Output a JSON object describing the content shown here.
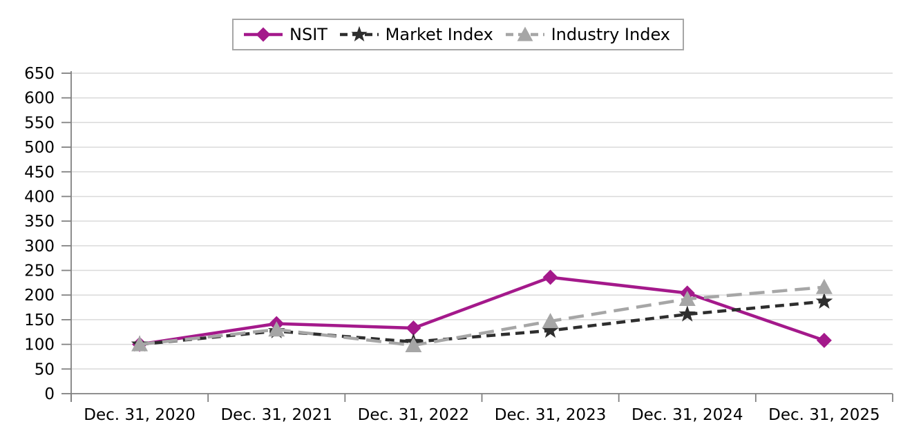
{
  "chart_data": {
    "type": "line",
    "title": "",
    "xlabel": "",
    "ylabel": "",
    "categories": [
      "Dec. 31, 2020",
      "Dec. 31, 2021",
      "Dec. 31, 2022",
      "Dec. 31, 2023",
      "Dec. 31, 2024",
      "Dec. 31, 2025"
    ],
    "series": [
      {
        "name": "NSIT",
        "color": "#a4198b",
        "dash": "solid",
        "marker": "diamond",
        "values": [
          100,
          142,
          133,
          236,
          204,
          108
        ]
      },
      {
        "name": "Market Index",
        "color": "#2e2e2e",
        "dash": "dashed",
        "marker": "star",
        "values": [
          100,
          127,
          105,
          128,
          161,
          187
        ]
      },
      {
        "name": "Industry Index",
        "color": "#a6a6a6",
        "dash": "long-dash",
        "marker": "triangle",
        "values": [
          100,
          130,
          98,
          147,
          192,
          216
        ]
      }
    ],
    "ylim": [
      0,
      650
    ],
    "y_ticks": [
      0,
      50,
      100,
      150,
      200,
      250,
      300,
      350,
      400,
      450,
      500,
      550,
      600,
      650
    ],
    "grid": true,
    "legend_position": "top",
    "axis_color": "#808080",
    "grid_color": "#d9d9d9",
    "text_color": "#000000"
  }
}
